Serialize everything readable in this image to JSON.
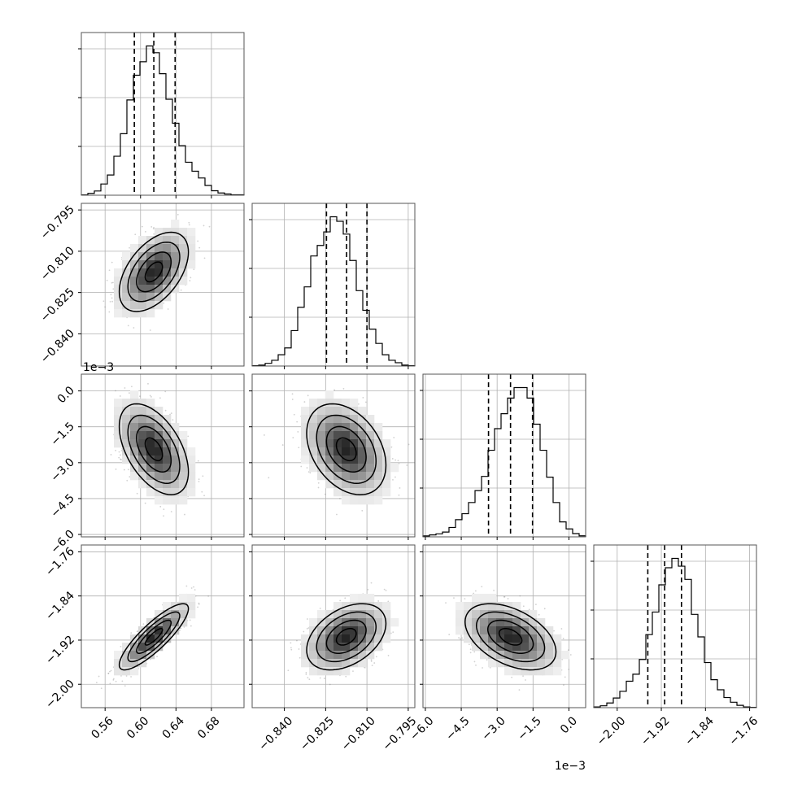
{
  "chart_data": {
    "type": "corner",
    "n_params": 4,
    "params": [
      {
        "range": [
          0.5332,
          0.7168
        ],
        "ticks": [
          0.56,
          0.6,
          0.64,
          0.68
        ],
        "tick_labels": [
          "0.56",
          "0.60",
          "0.64",
          "0.68"
        ],
        "offset_label": "",
        "quantiles": [
          0.593,
          0.615,
          0.639
        ],
        "mean": 0.615,
        "sd": 0.0195,
        "hist": [
          0.2,
          1.2,
          2.8,
          7.5,
          13.5,
          26,
          41,
          63.5,
          80,
          89,
          99.5,
          95,
          81,
          64,
          48,
          33,
          22,
          16,
          11.5,
          6.5,
          3,
          1.5,
          0.8,
          0.3,
          0.3
        ]
      },
      {
        "range": [
          -0.8517,
          -0.7926
        ],
        "ticks": [
          -0.84,
          -0.825,
          -0.81,
          -0.795
        ],
        "tick_labels": [
          "−0.840",
          "−0.825",
          "−0.810",
          "−0.795"
        ],
        "offset_label": "",
        "quantiles": [
          -0.8247,
          -0.8174,
          -0.81
        ],
        "mean": -0.8175,
        "sd": 0.0072,
        "hist": [
          0.2,
          0.6,
          1.8,
          3.8,
          7.5,
          12,
          23.5,
          39,
          52.5,
          73,
          80,
          89,
          99,
          96,
          87.5,
          70,
          50,
          37,
          24.5,
          15,
          7.5,
          3.8,
          2.2,
          0.6,
          0.2
        ]
      },
      {
        "range": [
          -6.1,
          0.7
        ],
        "ticks": [
          -6.0,
          -4.5,
          -3.0,
          -1.5,
          0.0
        ],
        "tick_labels": [
          "−6.0",
          "−4.5",
          "−3.0",
          "−1.5",
          "0.0"
        ],
        "offset_label": "1e−3",
        "quantiles": [
          -3.36,
          -2.44,
          -1.52
        ],
        "mean": -2.44,
        "sd": 0.95,
        "hist": [
          0.6,
          1.3,
          2.0,
          3.2,
          6.3,
          11.5,
          15.5,
          23,
          31,
          40.5,
          58,
          72.5,
          82.5,
          93,
          100,
          100,
          93,
          75.5,
          58,
          40,
          23,
          10,
          5.3,
          2.2,
          0.7
        ]
      },
      {
        "range": [
          -2.0424,
          -1.7476
        ],
        "ticks": [
          -2.0,
          -1.92,
          -1.84,
          -1.76
        ],
        "tick_labels": [
          "−2.00",
          "−1.92",
          "−1.84",
          "−1.76"
        ],
        "offset_label": "",
        "quantiles": [
          -1.9445,
          -1.914,
          -1.8835
        ],
        "mean": -1.914,
        "sd": 0.03,
        "hist": [
          0.5,
          1.2,
          3.0,
          6.2,
          10.5,
          17,
          21.5,
          31,
          47,
          61.5,
          79,
          90,
          96,
          91,
          82.5,
          60,
          45.5,
          29,
          18,
          11.5,
          6.5,
          3.5,
          1.5,
          0.5,
          0.2
        ]
      }
    ],
    "correlations": [
      [
        1,
        2,
        0.5
      ],
      [
        1,
        3,
        -0.5
      ],
      [
        2,
        3,
        -0.35
      ],
      [
        1,
        4,
        0.85
      ],
      [
        2,
        4,
        0.4
      ],
      [
        3,
        4,
        -0.45
      ]
    ],
    "contour_levels": [
      0.5,
      1.0,
      1.5,
      2.0
    ],
    "grid": true,
    "title": "",
    "xlabel": "",
    "ylabel": ""
  }
}
